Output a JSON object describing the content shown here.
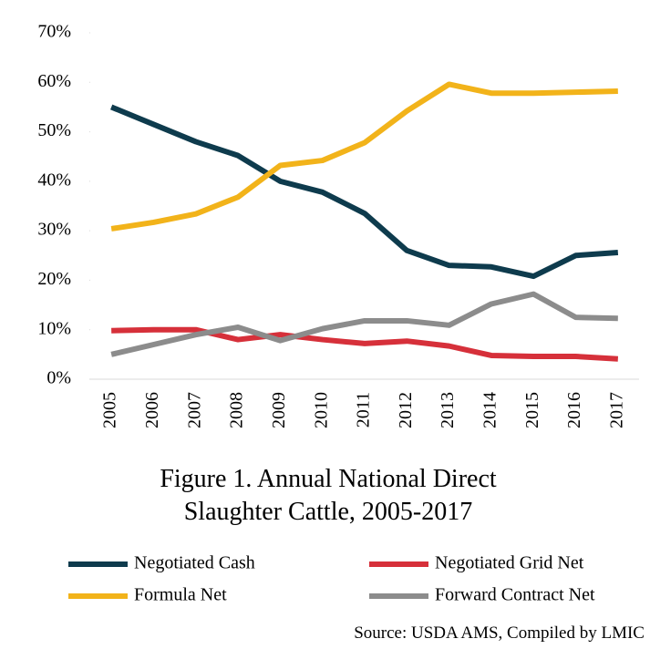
{
  "chart_data": {
    "type": "line",
    "title": "Figure 1. Annual National Direct Slaughter Cattle, 2005-2017",
    "source": "Source: USDA AMS, Compiled by LMIC",
    "categories": [
      "2005",
      "2006",
      "2007",
      "2008",
      "2009",
      "2010",
      "2011",
      "2012",
      "2013",
      "2014",
      "2015",
      "2016",
      "2017"
    ],
    "series": [
      {
        "name": "Negotiated Cash",
        "color": "#0e3b4d",
        "values": [
          55,
          51.5,
          48,
          45.2,
          40,
          37.8,
          33.5,
          26,
          23,
          22.7,
          20.8,
          25,
          25.6
        ]
      },
      {
        "name": "Negotiated Grid Net",
        "color": "#d6303a",
        "values": [
          9.8,
          10,
          10,
          8,
          9,
          8,
          7.2,
          7.7,
          6.7,
          4.8,
          4.6,
          4.6,
          4.1
        ]
      },
      {
        "name": "Formula Net",
        "color": "#f2b31a",
        "values": [
          30.4,
          31.7,
          33.4,
          36.8,
          43.2,
          44.2,
          47.8,
          54.2,
          59.6,
          57.8,
          57.8,
          58,
          58.2
        ]
      },
      {
        "name": "Forward Contract Net",
        "color": "#8c8c8c",
        "values": [
          5,
          7,
          9,
          10.5,
          7.8,
          10.2,
          11.8,
          11.8,
          10.9,
          15.2,
          17.2,
          12.5,
          12.3
        ]
      }
    ],
    "ylim": [
      0,
      70
    ],
    "yticks": [
      {
        "value": 0,
        "label": "0%"
      },
      {
        "value": 10,
        "label": "10%"
      },
      {
        "value": 20,
        "label": "20%"
      },
      {
        "value": 30,
        "label": "30%"
      },
      {
        "value": 40,
        "label": "40%"
      },
      {
        "value": 50,
        "label": "50%"
      },
      {
        "value": 60,
        "label": "60%"
      },
      {
        "value": 70,
        "label": "70%"
      }
    ],
    "grid": false
  }
}
